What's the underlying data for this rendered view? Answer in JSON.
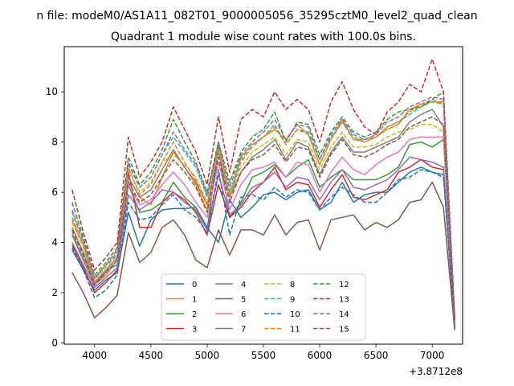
{
  "chart_data": {
    "type": "line",
    "suptitle": "n file: modeM0/AS1A11_082T01_9000005056_35295cztM0_level2_quad_clean",
    "title": "Quadrant 1 module wise count rates with 100.0s bins.",
    "xlabel": "",
    "ylabel": "",
    "x_offset_label": "+3.8712e8",
    "xlim": [
      3730,
      7270
    ],
    "ylim": [
      -0.05,
      11.8
    ],
    "xticks": [
      4000,
      4500,
      5000,
      5500,
      6000,
      6500,
      7000
    ],
    "yticks": [
      0,
      2,
      4,
      6,
      8,
      10
    ],
    "grid": false,
    "legend": {
      "position": "lower center",
      "columns": 4
    },
    "x": [
      3800,
      3900,
      4000,
      4100,
      4200,
      4300,
      4400,
      4500,
      4600,
      4700,
      4800,
      4900,
      5000,
      5100,
      5200,
      5300,
      5400,
      5500,
      5600,
      5700,
      5800,
      5900,
      6000,
      6100,
      6200,
      6300,
      6400,
      6500,
      6600,
      6700,
      6800,
      6900,
      7000,
      7100,
      7200
    ],
    "series": [
      {
        "name": "0",
        "color": "#1f77b4",
        "dash": "solid",
        "values": [
          3.7,
          2.9,
          2.1,
          2.5,
          2.8,
          5.2,
          3.85,
          4.9,
          5.3,
          5.35,
          5.35,
          5.4,
          4.6,
          4.0,
          5.7,
          5.0,
          5.4,
          5.9,
          6.0,
          5.7,
          6.0,
          6.1,
          5.3,
          5.6,
          6.4,
          5.6,
          5.9,
          6.0,
          6.0,
          6.4,
          6.8,
          7.0,
          6.8,
          6.7,
          0.7
        ]
      },
      {
        "name": "1",
        "color": "#ff7f0e",
        "dash": "solid",
        "values": [
          4.9,
          3.9,
          2.3,
          2.7,
          3.3,
          6.6,
          5.8,
          5.5,
          6.6,
          7.6,
          7.0,
          6.3,
          5.3,
          7.8,
          5.9,
          7.4,
          7.9,
          8.2,
          8.5,
          8.1,
          8.7,
          8.3,
          7.1,
          8.1,
          8.9,
          8.1,
          8.1,
          8.2,
          8.5,
          8.7,
          9.3,
          9.5,
          9.6,
          9.6,
          0.9
        ]
      },
      {
        "name": "2",
        "color": "#2ca02c",
        "dash": "solid",
        "values": [
          4.3,
          3.3,
          2.3,
          2.9,
          3.1,
          6.3,
          5.2,
          5.3,
          5.6,
          6.4,
          5.8,
          5.4,
          4.5,
          7.8,
          5.0,
          5.6,
          6.6,
          6.8,
          7.1,
          6.6,
          7.0,
          7.3,
          6.2,
          6.6,
          6.9,
          6.5,
          6.5,
          6.5,
          6.7,
          7.0,
          7.9,
          8.0,
          7.8,
          8.1,
          0.8
        ]
      },
      {
        "name": "3",
        "color": "#d62728",
        "dash": "solid",
        "values": [
          3.9,
          3.0,
          2.0,
          2.4,
          2.9,
          6.8,
          4.6,
          4.6,
          5.6,
          6.0,
          5.7,
          5.2,
          4.3,
          6.3,
          5.0,
          5.4,
          6.0,
          6.4,
          7.0,
          6.1,
          6.4,
          6.3,
          5.4,
          6.1,
          6.7,
          5.8,
          5.7,
          5.9,
          6.1,
          6.8,
          7.0,
          7.3,
          7.0,
          6.9,
          0.6
        ]
      },
      {
        "name": "4",
        "color": "#9467bd",
        "dash": "solid",
        "values": [
          4.0,
          3.1,
          2.2,
          2.6,
          3.0,
          5.9,
          5.3,
          5.6,
          6.1,
          6.0,
          5.6,
          5.3,
          4.5,
          6.7,
          5.1,
          5.5,
          6.2,
          6.4,
          6.8,
          6.2,
          6.6,
          6.5,
          5.7,
          6.4,
          6.9,
          6.2,
          6.1,
          6.3,
          6.5,
          6.9,
          7.4,
          7.3,
          7.2,
          7.0,
          0.6
        ]
      },
      {
        "name": "5",
        "color": "#8c564b",
        "dash": "solid",
        "values": [
          2.8,
          2.0,
          1.0,
          1.4,
          1.9,
          4.4,
          3.2,
          3.6,
          4.6,
          4.9,
          4.3,
          3.3,
          3.0,
          4.5,
          3.5,
          4.5,
          4.5,
          4.3,
          5.1,
          4.3,
          4.8,
          4.9,
          3.7,
          4.9,
          5.0,
          5.1,
          4.5,
          4.8,
          4.6,
          4.9,
          5.6,
          5.7,
          6.4,
          5.4,
          0.5
        ]
      },
      {
        "name": "6",
        "color": "#e377c2",
        "dash": "solid",
        "values": [
          4.4,
          3.4,
          2.3,
          2.8,
          3.3,
          6.3,
          5.5,
          5.7,
          6.3,
          6.8,
          6.3,
          5.6,
          5.0,
          7.2,
          5.3,
          6.3,
          6.9,
          7.0,
          7.2,
          6.6,
          7.2,
          7.1,
          6.0,
          6.8,
          7.4,
          6.9,
          6.7,
          7.1,
          7.4,
          7.6,
          8.1,
          8.2,
          8.2,
          8.2,
          0.7
        ]
      },
      {
        "name": "7",
        "color": "#7f7f7f",
        "dash": "solid",
        "values": [
          4.6,
          3.6,
          2.4,
          2.9,
          3.4,
          6.6,
          5.8,
          6.1,
          6.9,
          7.7,
          7.0,
          6.4,
          5.5,
          7.6,
          5.8,
          6.8,
          7.4,
          7.7,
          8.1,
          7.3,
          8.0,
          7.8,
          6.7,
          7.6,
          8.2,
          7.6,
          7.6,
          7.8,
          8.0,
          8.2,
          8.8,
          9.1,
          9.3,
          8.6,
          0.8
        ]
      },
      {
        "name": "8",
        "color": "#bcbd22",
        "dash": "dashed",
        "values": [
          4.8,
          3.8,
          2.5,
          3.0,
          3.5,
          6.9,
          6.0,
          6.4,
          7.2,
          7.5,
          7.1,
          6.6,
          5.6,
          7.7,
          5.9,
          7.0,
          7.6,
          7.9,
          8.2,
          7.5,
          8.1,
          8.0,
          6.9,
          7.8,
          8.4,
          7.8,
          7.8,
          7.9,
          8.2,
          8.4,
          8.5,
          8.7,
          8.7,
          8.4,
          0.8
        ]
      },
      {
        "name": "9",
        "color": "#17becf",
        "dash": "dashed",
        "values": [
          5.2,
          4.0,
          2.6,
          3.1,
          3.6,
          7.1,
          6.2,
          6.6,
          7.5,
          8.2,
          7.6,
          7.0,
          5.8,
          8.0,
          6.0,
          7.3,
          7.9,
          8.2,
          8.7,
          7.9,
          8.5,
          8.4,
          7.3,
          8.2,
          8.8,
          8.2,
          8.0,
          8.2,
          8.6,
          8.8,
          9.1,
          9.4,
          9.6,
          9.5,
          0.9
        ]
      },
      {
        "name": "10",
        "color": "#1f77b4",
        "dash": "dashed",
        "values": [
          3.8,
          2.9,
          1.8,
          2.1,
          2.7,
          5.6,
          4.9,
          5.0,
          5.5,
          5.9,
          5.3,
          5.0,
          4.4,
          6.9,
          4.3,
          5.8,
          5.9,
          5.7,
          6.2,
          5.8,
          6.1,
          6.0,
          5.3,
          5.8,
          6.2,
          5.9,
          5.6,
          5.6,
          6.0,
          6.5,
          6.6,
          6.9,
          6.8,
          6.6,
          0.6
        ]
      },
      {
        "name": "11",
        "color": "#ff7f0e",
        "dash": "dashed",
        "values": [
          5.0,
          3.9,
          2.5,
          3.1,
          3.5,
          7.0,
          5.9,
          6.3,
          7.2,
          8.0,
          7.2,
          6.5,
          5.5,
          7.9,
          5.8,
          7.2,
          7.8,
          8.2,
          8.6,
          7.9,
          8.5,
          8.3,
          7.1,
          8.1,
          8.8,
          8.1,
          8.0,
          8.2,
          8.6,
          8.8,
          9.2,
          9.5,
          9.7,
          9.5,
          0.9
        ]
      },
      {
        "name": "12",
        "color": "#2ca02c",
        "dash": "dashed",
        "values": [
          5.6,
          4.2,
          2.7,
          3.2,
          3.8,
          7.4,
          6.3,
          6.8,
          7.7,
          8.9,
          8.0,
          7.2,
          6.0,
          8.0,
          6.4,
          7.6,
          8.2,
          8.5,
          9.2,
          8.0,
          8.8,
          8.7,
          7.5,
          8.4,
          9.0,
          8.4,
          8.2,
          8.4,
          8.9,
          9.2,
          9.3,
          9.4,
          9.7,
          10.0,
          0.9
        ]
      },
      {
        "name": "13",
        "color": "#d62728",
        "dash": "dashed",
        "values": [
          6.1,
          4.4,
          2.9,
          3.4,
          4.0,
          8.2,
          6.6,
          7.2,
          8.0,
          9.4,
          8.5,
          7.6,
          6.3,
          9.0,
          6.8,
          8.9,
          9.3,
          9.0,
          10.0,
          9.3,
          9.7,
          9.3,
          8.0,
          9.6,
          10.4,
          9.3,
          8.6,
          8.3,
          9.2,
          9.6,
          10.3,
          10.0,
          11.3,
          10.0,
          1.0
        ]
      },
      {
        "name": "14",
        "color": "#9467bd",
        "dash": "dashed",
        "values": [
          5.3,
          4.1,
          2.6,
          3.1,
          3.7,
          7.2,
          6.2,
          6.6,
          7.5,
          8.4,
          7.7,
          7.1,
          5.9,
          7.9,
          6.2,
          7.5,
          8.0,
          8.4,
          8.9,
          8.1,
          8.7,
          8.6,
          7.3,
          8.3,
          8.9,
          8.3,
          8.1,
          8.3,
          8.8,
          9.0,
          9.4,
          9.6,
          9.8,
          9.7,
          0.9
        ]
      },
      {
        "name": "15",
        "color": "#8c564b",
        "dash": "dashed",
        "values": [
          4.5,
          3.5,
          2.3,
          2.8,
          3.3,
          6.4,
          5.6,
          5.9,
          6.6,
          7.3,
          6.8,
          6.2,
          5.2,
          7.4,
          5.6,
          6.8,
          7.3,
          7.5,
          7.9,
          7.2,
          7.8,
          7.7,
          6.6,
          7.5,
          8.1,
          7.5,
          7.4,
          7.6,
          7.9,
          8.1,
          8.6,
          8.8,
          9.0,
          8.7,
          0.8
        ]
      }
    ]
  }
}
